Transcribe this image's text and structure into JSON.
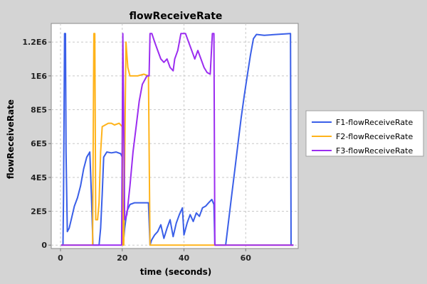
{
  "chart_data": {
    "type": "line",
    "title": "flowReceiveRate",
    "xlabel": "time (seconds)",
    "ylabel": "flowReceiveRate",
    "xlim": [
      -3,
      77
    ],
    "ylim": [
      -20000,
      1310000
    ],
    "x_ticks": [
      0,
      20,
      40,
      60
    ],
    "x_tick_labels": [
      "0",
      "20",
      "40",
      "60"
    ],
    "y_ticks": [
      0,
      200000,
      400000,
      600000,
      800000,
      1000000,
      1200000
    ],
    "y_tick_labels": [
      "0",
      "2E5",
      "4E5",
      "6E5",
      "8E5",
      "1E6",
      "1.2E6"
    ],
    "grid": true,
    "legend_position": "right",
    "series": [
      {
        "name": "F1-flowReceiveRate",
        "color": "#3a5fe8",
        "points": [
          [
            0.2,
            0
          ],
          [
            0.8,
            0
          ],
          [
            1,
            300000
          ],
          [
            1.3,
            1250000
          ],
          [
            1.6,
            1250000
          ],
          [
            1.8,
            550000
          ],
          [
            2.2,
            80000
          ],
          [
            2.8,
            100000
          ],
          [
            3.6,
            160000
          ],
          [
            4.5,
            230000
          ],
          [
            5.5,
            280000
          ],
          [
            6.5,
            350000
          ],
          [
            7.5,
            450000
          ],
          [
            8.5,
            520000
          ],
          [
            9.5,
            550000
          ],
          [
            10,
            300000
          ],
          [
            10.5,
            0
          ],
          [
            11.5,
            0
          ],
          [
            12.5,
            0
          ],
          [
            13,
            100000
          ],
          [
            13.5,
            300000
          ],
          [
            14,
            520000
          ],
          [
            15,
            550000
          ],
          [
            16.5,
            545000
          ],
          [
            18,
            550000
          ],
          [
            19.5,
            540000
          ],
          [
            20,
            520000
          ],
          [
            20.3,
            0
          ],
          [
            20.8,
            100000
          ],
          [
            21.5,
            200000
          ],
          [
            22.5,
            240000
          ],
          [
            24,
            250000
          ],
          [
            26,
            250000
          ],
          [
            28.5,
            250000
          ],
          [
            29,
            0
          ],
          [
            29.5,
            30000
          ],
          [
            30.5,
            60000
          ],
          [
            31.5,
            80000
          ],
          [
            32.5,
            120000
          ],
          [
            33.5,
            40000
          ],
          [
            34.5,
            100000
          ],
          [
            35.5,
            150000
          ],
          [
            36.5,
            50000
          ],
          [
            37.5,
            130000
          ],
          [
            38.5,
            180000
          ],
          [
            39.5,
            220000
          ],
          [
            40,
            60000
          ],
          [
            41,
            130000
          ],
          [
            42,
            180000
          ],
          [
            43,
            140000
          ],
          [
            44,
            190000
          ],
          [
            45,
            170000
          ],
          [
            46,
            220000
          ],
          [
            47,
            230000
          ],
          [
            48,
            250000
          ],
          [
            49,
            270000
          ],
          [
            49.7,
            240000
          ],
          [
            50,
            0
          ],
          [
            52,
            0
          ],
          [
            53.5,
            0
          ],
          [
            54.5,
            150000
          ],
          [
            55.5,
            300000
          ],
          [
            56.5,
            450000
          ],
          [
            57.5,
            600000
          ],
          [
            58.5,
            750000
          ],
          [
            59.5,
            880000
          ],
          [
            60.5,
            1000000
          ],
          [
            61.5,
            1120000
          ],
          [
            62.5,
            1220000
          ],
          [
            63.5,
            1245000
          ],
          [
            66,
            1240000
          ],
          [
            70,
            1245000
          ],
          [
            74.5,
            1250000
          ],
          [
            74.7,
            0
          ],
          [
            75.5,
            0
          ]
        ]
      },
      {
        "name": "F2-flowReceiveRate",
        "color": "#ffb31a",
        "points": [
          [
            0.2,
            0
          ],
          [
            10,
            0
          ],
          [
            10.4,
            0
          ],
          [
            10.8,
            1250000
          ],
          [
            11.1,
            1250000
          ],
          [
            11.4,
            150000
          ],
          [
            12,
            150000
          ],
          [
            12.5,
            250000
          ],
          [
            13,
            550000
          ],
          [
            13.5,
            700000
          ],
          [
            14.5,
            710000
          ],
          [
            15.5,
            720000
          ],
          [
            16.5,
            720000
          ],
          [
            17.5,
            710000
          ],
          [
            19,
            720000
          ],
          [
            20,
            700000
          ],
          [
            20.2,
            0
          ],
          [
            20.5,
            0
          ],
          [
            21.2,
            1200000
          ],
          [
            21.8,
            1050000
          ],
          [
            22.5,
            1000000
          ],
          [
            24,
            1000000
          ],
          [
            25,
            1000000
          ],
          [
            27,
            1010000
          ],
          [
            28.5,
            1000000
          ],
          [
            29,
            0
          ],
          [
            75.5,
            0
          ]
        ]
      },
      {
        "name": "F3-flowReceiveRate",
        "color": "#9b2df0",
        "points": [
          [
            0.2,
            0
          ],
          [
            19.8,
            0
          ],
          [
            20.2,
            1250000
          ],
          [
            20.8,
            150000
          ],
          [
            21.5,
            180000
          ],
          [
            22.5,
            350000
          ],
          [
            23.5,
            550000
          ],
          [
            24.5,
            700000
          ],
          [
            25.5,
            850000
          ],
          [
            26.5,
            950000
          ],
          [
            28,
            1000000
          ],
          [
            28.7,
            1000000
          ],
          [
            29,
            1250000
          ],
          [
            29.6,
            1250000
          ],
          [
            30.5,
            1200000
          ],
          [
            31.5,
            1150000
          ],
          [
            32.5,
            1100000
          ],
          [
            33.5,
            1080000
          ],
          [
            34.5,
            1100000
          ],
          [
            35.5,
            1050000
          ],
          [
            36.5,
            1030000
          ],
          [
            37,
            1100000
          ],
          [
            38,
            1150000
          ],
          [
            39,
            1250000
          ],
          [
            40.5,
            1250000
          ],
          [
            41.5,
            1200000
          ],
          [
            42.5,
            1150000
          ],
          [
            43.5,
            1100000
          ],
          [
            44.5,
            1150000
          ],
          [
            45.5,
            1100000
          ],
          [
            46.5,
            1050000
          ],
          [
            47.5,
            1020000
          ],
          [
            48.5,
            1010000
          ],
          [
            49.2,
            1250000
          ],
          [
            49.7,
            1250000
          ],
          [
            50,
            0
          ],
          [
            75.5,
            0
          ]
        ]
      }
    ]
  }
}
